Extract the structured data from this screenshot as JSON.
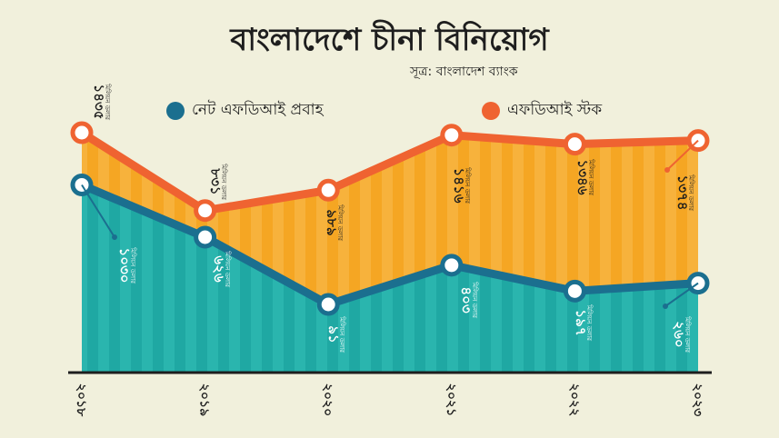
{
  "title": "বাংলাদেশে চীনা বিনিয়োগ",
  "source": "সূত্র: বাংলাদেশ ব্যাংক",
  "colors": {
    "background": "#f1f0dc",
    "flow": "#1b6f8f",
    "flow_fill": "#1fa8a3",
    "stock": "#ef6331",
    "stock_fill": "#f5a623"
  },
  "chart_data": {
    "type": "area",
    "categories": [
      "২০১৮",
      "২০১৯",
      "২০২০",
      "২০২১",
      "২০২২",
      "২০২৩"
    ],
    "unit_label": "মিলিয়ন ডলার",
    "legend_position": "top",
    "series": [
      {
        "name": "নেট এফডিআই প্রবাহ",
        "values": [
          1030,
          626,
          91,
          403,
          197,
          260
        ],
        "labels": [
          "১০৩০",
          "৬২৬",
          "৯১",
          "৪০৩",
          "১৯৭",
          "২৬০"
        ]
      },
      {
        "name": "এফডিআই স্টক",
        "values": [
          1435,
          831,
          989,
          1416,
          1346,
          1374
        ],
        "labels": [
          "১৪৩৫",
          "৮৩১",
          "৯৮৯",
          "১৪১৬",
          "১৩৪৬",
          "১৩৭৪"
        ]
      }
    ]
  }
}
